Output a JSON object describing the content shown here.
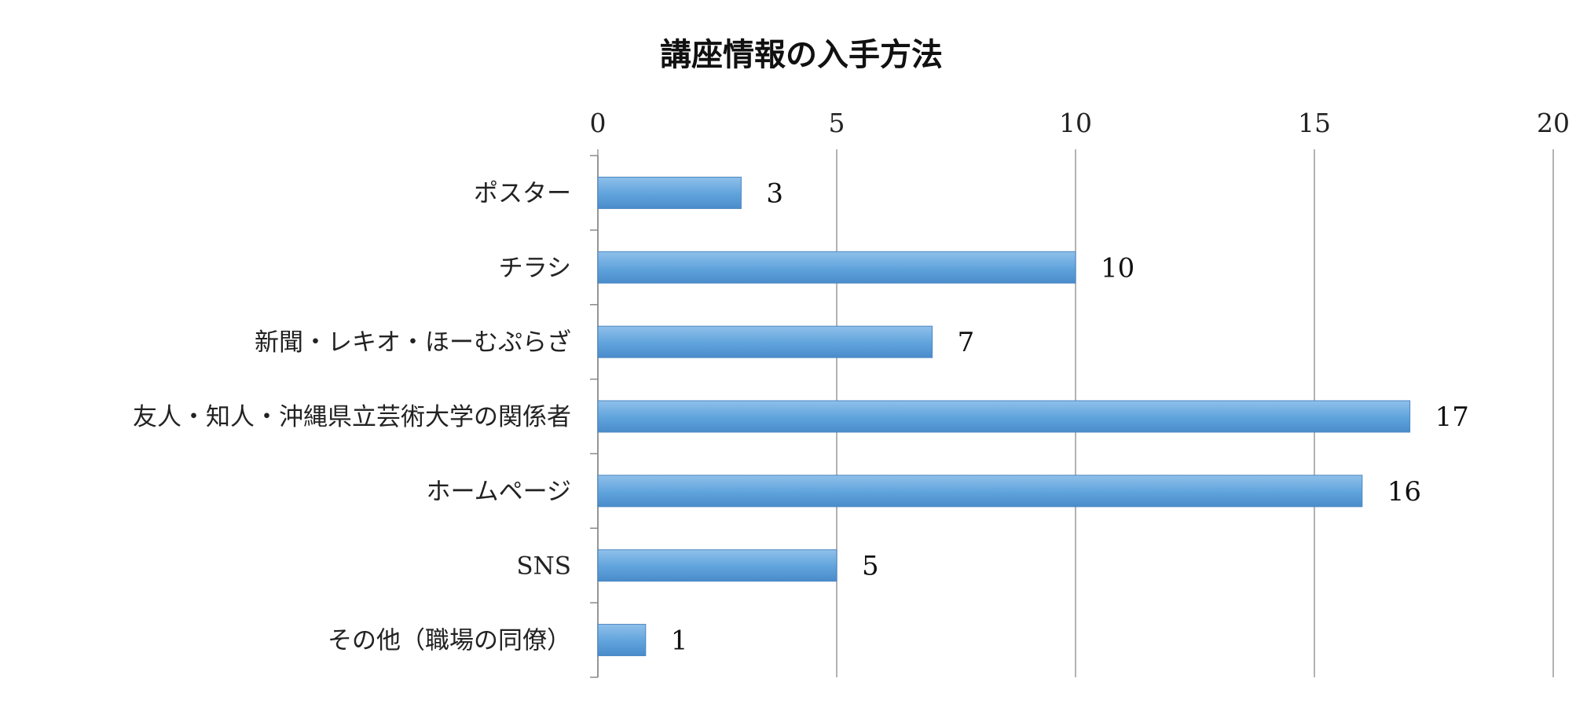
{
  "chart_data": {
    "type": "bar",
    "orientation": "horizontal",
    "title": "講座情報の入手方法",
    "categories": [
      "ポスター",
      "チラシ",
      "新聞・レキオ・ほーむぷらざ",
      "友人・知人・沖縄県立芸術大学の関係者",
      "ホームページ",
      "SNS",
      "その他（職場の同僚）"
    ],
    "values": [
      3,
      10,
      7,
      17,
      16,
      5,
      1
    ],
    "xlim": [
      0,
      20
    ],
    "x_ticks": [
      0,
      5,
      10,
      15,
      20
    ],
    "x_axis_position": "top",
    "grid": true,
    "data_labels": true,
    "legend": "none",
    "bar_color": "#5b9bd5"
  }
}
